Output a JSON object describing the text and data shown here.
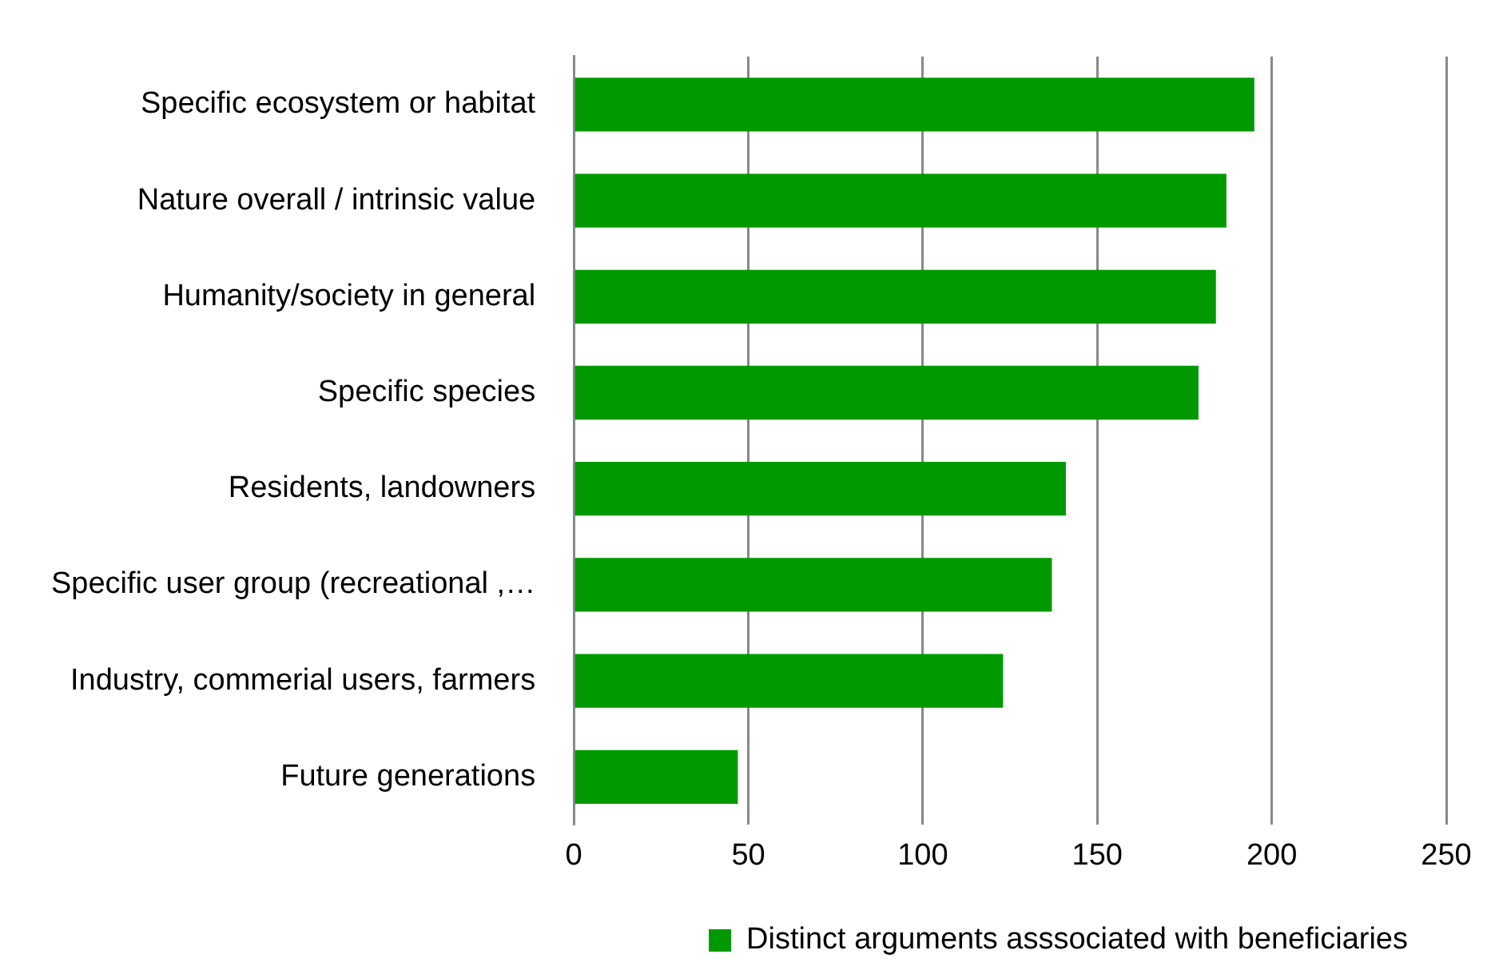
{
  "chart_data": {
    "type": "bar",
    "orientation": "horizontal",
    "categories": [
      "Specific ecosystem or habitat",
      "Nature overall / intrinsic value",
      "Humanity/society in general",
      "Specific species",
      "Residents, landowners",
      "Specific user group (recreational ,…",
      "Industry, commerial users, farmers",
      "Future generations"
    ],
    "series": [
      {
        "name": "Distinct arguments asssociated with beneficiaries",
        "color": "#009900",
        "values": [
          195,
          187,
          184,
          179,
          141,
          137,
          123,
          47
        ]
      }
    ],
    "xlim": [
      0,
      250
    ],
    "xticks": [
      0,
      50,
      100,
      150,
      200,
      250
    ],
    "grid": "x",
    "legend": "bottom"
  }
}
